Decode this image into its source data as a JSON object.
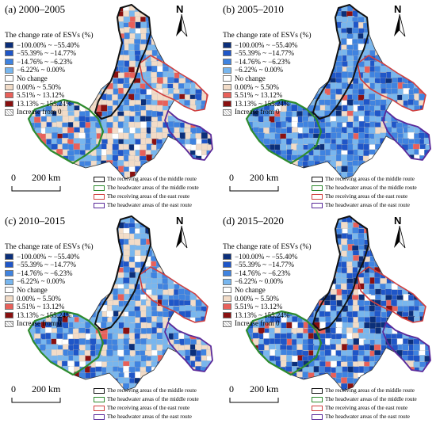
{
  "legend_title": "The change rate of ESVs (%)",
  "classes": [
    {
      "label": "−100.00% ~ −55.40%",
      "color": "#0b2f7a"
    },
    {
      "label": "−55.39% ~ −14.77%",
      "color": "#1f56c8"
    },
    {
      "label": "−14.76% ~ −6.23%",
      "color": "#3f83e0"
    },
    {
      "label": "−6.22% ~ 0.00%",
      "color": "#78b6ee"
    },
    {
      "label": "No change",
      "color": "#ffffff"
    },
    {
      "label": "0.00% ~ 5.50%",
      "color": "#f2dcc8"
    },
    {
      "label": "5.51% ~ 13.12%",
      "color": "#e8605a"
    },
    {
      "label": "13.13% ~ 155.24%",
      "color": "#8a1010"
    },
    {
      "label": "Increase from 0",
      "color": "hatch"
    }
  ],
  "regions": [
    {
      "label": "The receiving areas of the middle route",
      "color": "#111111"
    },
    {
      "label": "The headwater areas of the middle route",
      "color": "#2e8b2e"
    },
    {
      "label": "The receiving areas of the east route",
      "color": "#d04040"
    },
    {
      "label": "The headwater areas of the east route",
      "color": "#5a2a9a"
    }
  ],
  "scale": {
    "zero": "0",
    "distance": "200 km"
  },
  "north_label": "N",
  "panels": [
    {
      "title": "(a) 2000–2005",
      "regions_order": [
        0,
        1,
        2,
        3
      ]
    },
    {
      "title": "(b) 2005–2010",
      "regions_order": [
        0,
        1,
        2,
        3
      ]
    },
    {
      "title": "(c) 2010–2015",
      "regions_order": [
        0,
        1,
        2,
        3
      ]
    },
    {
      "title": "(d) 2015–2020",
      "regions_order": [
        0,
        1,
        2,
        3
      ]
    }
  ]
}
